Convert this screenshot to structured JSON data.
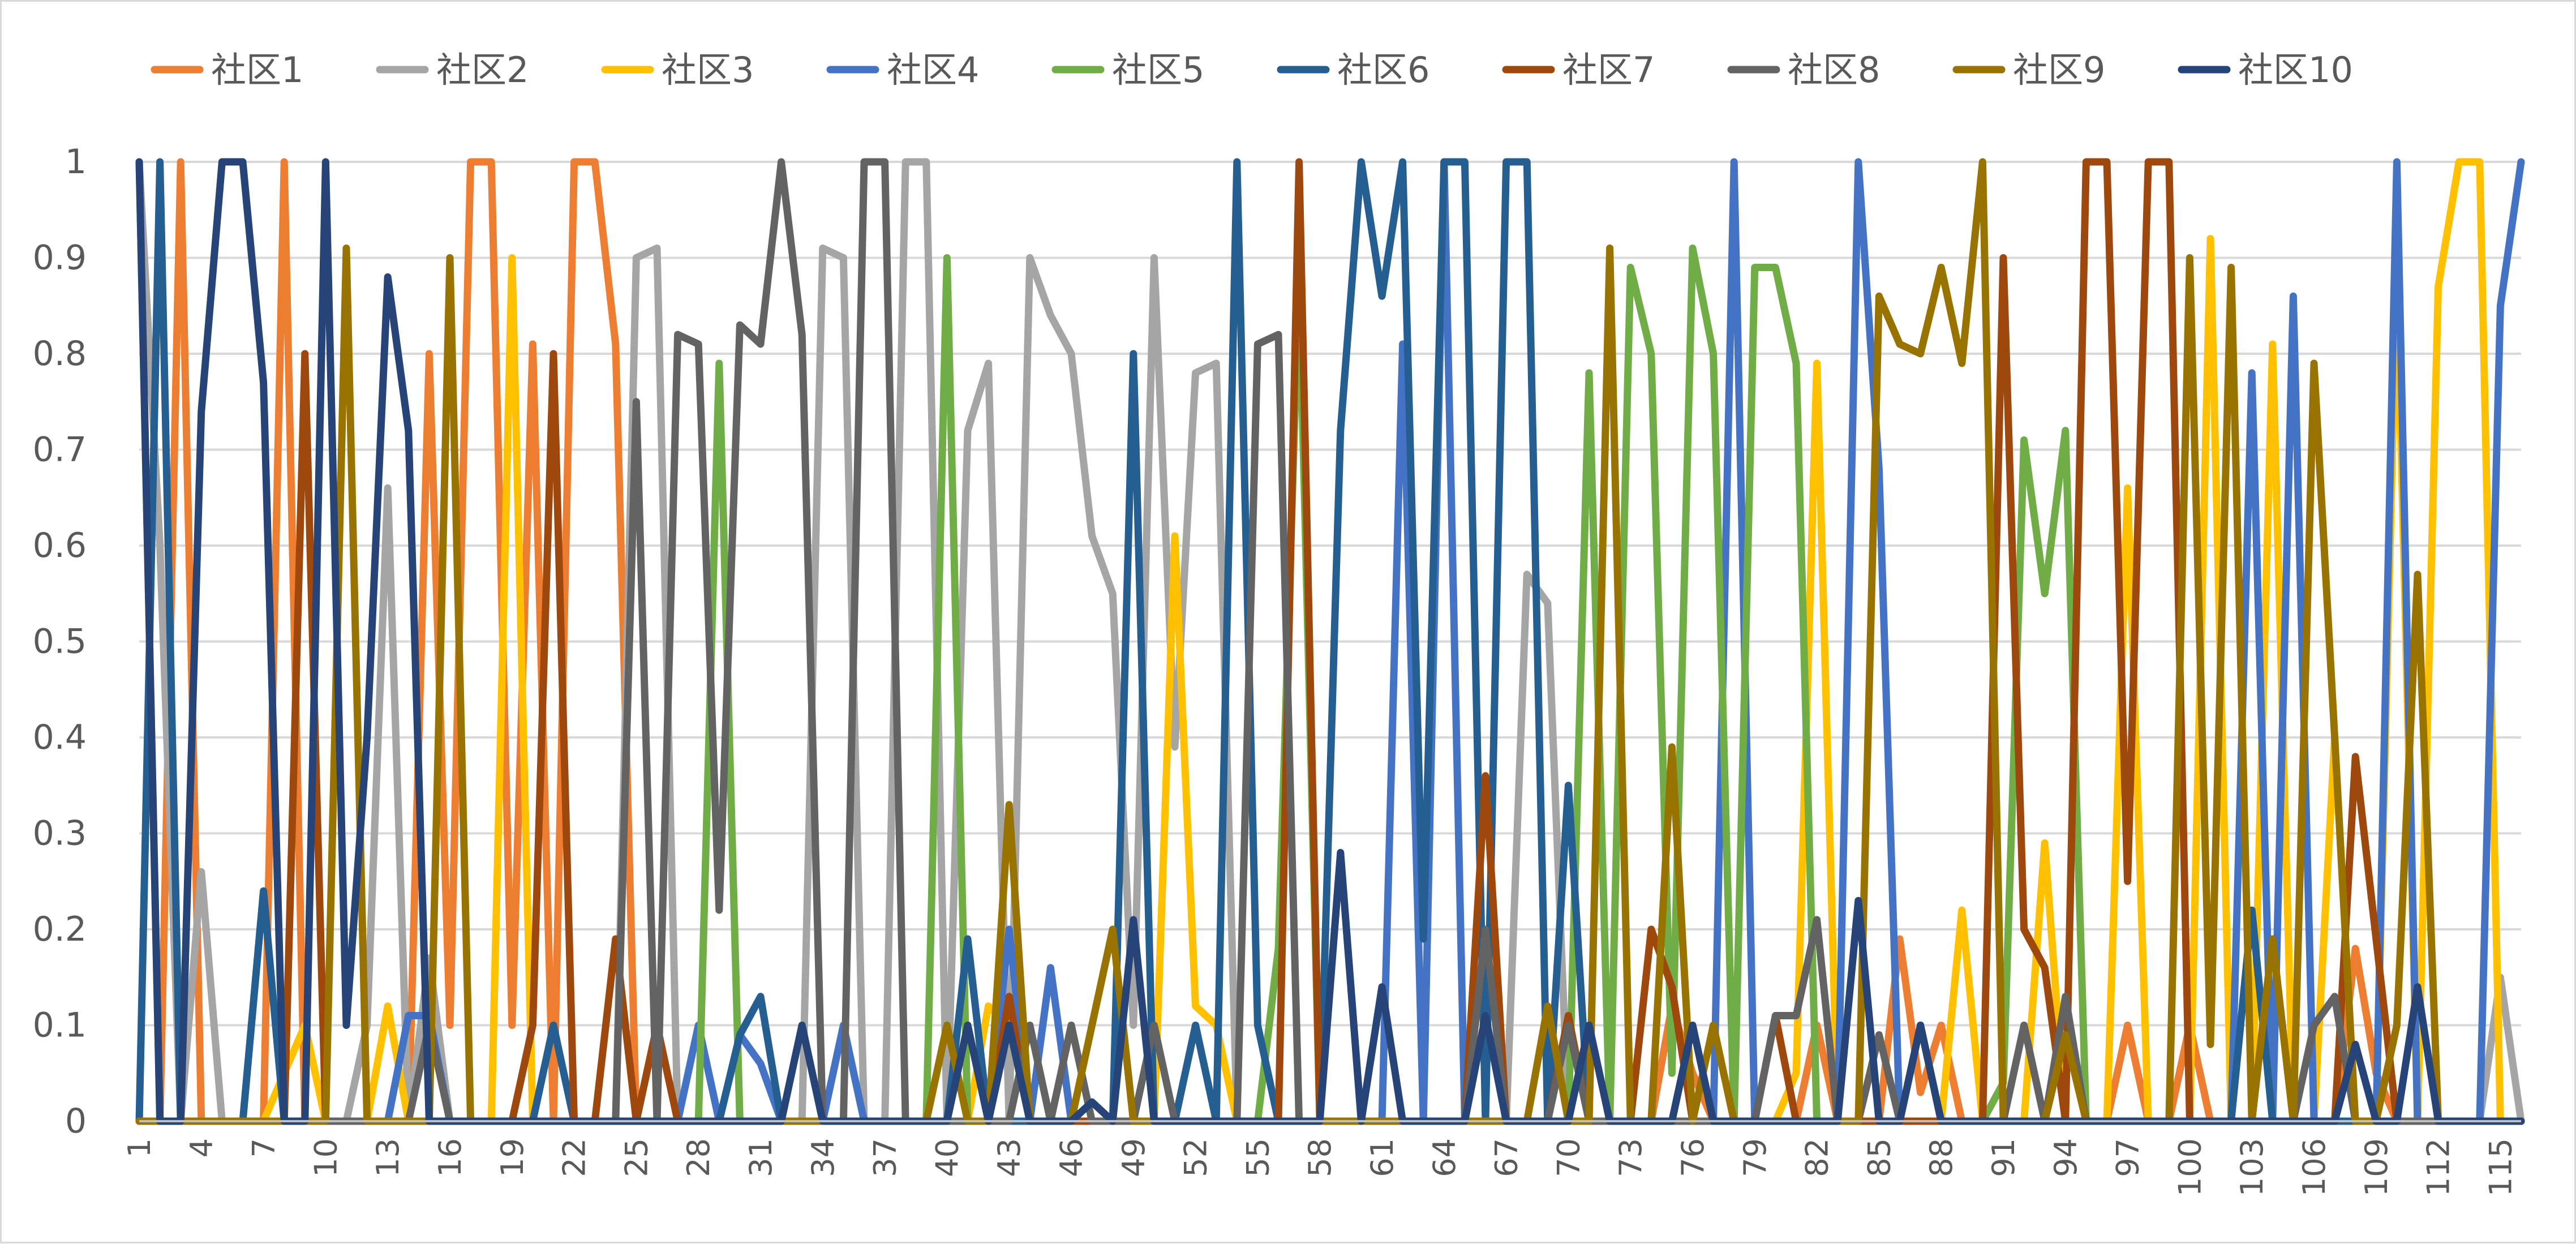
{
  "chart_data": {
    "type": "line",
    "title": "",
    "xlabel": "",
    "ylabel": "",
    "ylim": [
      0,
      1
    ],
    "yticks": [
      "0",
      "0.1",
      "0.2",
      "0.3",
      "0.4",
      "0.5",
      "0.6",
      "0.7",
      "0.8",
      "0.9",
      "1"
    ],
    "x": [
      1,
      2,
      3,
      4,
      5,
      6,
      7,
      8,
      9,
      10,
      11,
      12,
      13,
      14,
      15,
      16,
      17,
      18,
      19,
      20,
      21,
      22,
      23,
      24,
      25,
      26,
      27,
      28,
      29,
      30,
      31,
      32,
      33,
      34,
      35,
      36,
      37,
      38,
      39,
      40,
      41,
      42,
      43,
      44,
      45,
      46,
      47,
      48,
      49,
      50,
      51,
      52,
      53,
      54,
      55,
      56,
      57,
      58,
      59,
      60,
      61,
      62,
      63,
      64,
      65,
      66,
      67,
      68,
      69,
      70,
      71,
      72,
      73,
      74,
      75,
      76,
      77,
      78,
      79,
      80,
      81,
      82,
      83,
      84,
      85,
      86,
      87,
      88,
      89,
      90,
      91,
      92,
      93,
      94,
      95,
      96,
      97,
      98,
      99,
      100,
      101,
      102,
      103,
      104,
      105,
      106,
      107,
      108,
      109,
      110,
      111,
      112,
      113,
      114,
      115,
      116
    ],
    "xtick_labels": [
      "1",
      "4",
      "7",
      "10",
      "13",
      "16",
      "19",
      "22",
      "25",
      "28",
      "31",
      "34",
      "37",
      "40",
      "43",
      "46",
      "49",
      "52",
      "55",
      "58",
      "61",
      "64",
      "67",
      "70",
      "73",
      "76",
      "79",
      "82",
      "85",
      "88",
      "91",
      "94",
      "97",
      "100",
      "103",
      "106",
      "109",
      "112",
      "115"
    ],
    "legend_position": "top",
    "grid": true,
    "series": [
      {
        "name": "社区1",
        "color": "#ED7D31",
        "values": [
          1,
          0,
          1,
          0,
          0,
          0,
          0,
          1,
          0,
          0,
          0,
          0,
          0,
          0,
          0.8,
          0.1,
          1,
          1,
          0.1,
          0.81,
          0,
          1,
          1,
          0.81,
          0,
          0,
          0,
          0,
          0,
          0,
          0,
          0,
          0,
          0,
          0,
          0,
          0,
          0,
          0,
          0,
          0,
          0,
          0,
          0,
          0,
          0,
          0,
          0,
          0,
          0,
          0,
          0,
          0,
          0,
          0,
          0,
          0,
          0,
          0,
          0,
          0,
          0,
          0,
          0,
          0,
          0,
          0,
          0,
          0,
          0,
          0,
          0,
          0,
          0,
          0.12,
          0.05,
          0,
          0,
          0,
          0,
          0,
          0.1,
          0,
          0,
          0,
          0.19,
          0.03,
          0.1,
          0,
          0,
          0,
          0,
          0,
          0,
          0,
          0,
          0.1,
          0,
          0,
          0.1,
          0,
          0,
          0,
          0,
          0,
          0,
          0,
          0.18,
          0.05,
          0,
          0,
          0,
          0,
          0,
          0,
          0
        ]
      },
      {
        "name": "社区2",
        "color": "#A5A5A5",
        "values": [
          1,
          0.6,
          0,
          0.26,
          0,
          0,
          0,
          0,
          0,
          0,
          0,
          0.1,
          0.66,
          0,
          0.17,
          0,
          0,
          0,
          0,
          0,
          0,
          0,
          0,
          0,
          0.9,
          0.91,
          0,
          0,
          0,
          0,
          0,
          0,
          0,
          0.91,
          0.9,
          0,
          0,
          1,
          1,
          0,
          0.72,
          0.79,
          0,
          0.9,
          0.84,
          0.8,
          0.61,
          0.55,
          0.1,
          0.9,
          0.39,
          0.78,
          0.79,
          0,
          0,
          0,
          0,
          0,
          0,
          0,
          0,
          0,
          0,
          0,
          0,
          0,
          0,
          0.57,
          0.54,
          0,
          0,
          0,
          0,
          0,
          0,
          0,
          0,
          0,
          0,
          0,
          0,
          0,
          0,
          0,
          0,
          0,
          0,
          0,
          0,
          0,
          0,
          0,
          0,
          0,
          0,
          0,
          0,
          0,
          0,
          0,
          0,
          0,
          0,
          0,
          0,
          0,
          0,
          0,
          0,
          0,
          0,
          0,
          0,
          0,
          0.15,
          0
        ]
      },
      {
        "name": "社区3",
        "color": "#FFC000",
        "values": [
          0,
          0,
          0,
          0,
          0,
          0,
          0,
          0.05,
          0.1,
          0,
          0,
          0,
          0.12,
          0,
          0,
          0,
          0,
          0,
          0.9,
          0,
          0,
          0,
          0,
          0,
          0,
          0,
          0,
          0,
          0,
          0,
          0,
          0,
          0,
          0,
          0,
          0,
          0,
          0,
          0,
          0,
          0,
          0.12,
          0.1,
          0,
          0,
          0,
          0,
          0,
          0,
          0,
          0.61,
          0.12,
          0.1,
          0,
          0,
          0,
          0,
          0,
          0,
          0,
          0,
          0,
          0,
          0,
          0,
          0,
          0,
          0,
          0,
          0,
          0,
          0,
          0,
          0,
          0,
          0,
          0,
          0,
          0,
          0,
          0.05,
          0.79,
          0,
          0,
          0,
          0,
          0.1,
          0,
          0.22,
          0,
          0,
          0,
          0.29,
          0,
          0,
          0,
          0.66,
          0,
          0,
          0,
          0.92,
          0,
          0,
          0.81,
          0,
          0,
          0.4,
          0,
          0,
          0.89,
          0,
          0.87,
          1,
          1,
          0,
          0
        ]
      },
      {
        "name": "社区4",
        "color": "#4472C4",
        "values": [
          0,
          0,
          0,
          0,
          0,
          0,
          0,
          0,
          0,
          0,
          0,
          0,
          0,
          0.11,
          0.11,
          0,
          0,
          0,
          0,
          0,
          0,
          0,
          0,
          0,
          0,
          0,
          0,
          0.1,
          0,
          0.09,
          0.06,
          0,
          0,
          0,
          0.1,
          0,
          0,
          0,
          0,
          0,
          0,
          0,
          0.2,
          0,
          0.16,
          0,
          0,
          0,
          0,
          0,
          0,
          0,
          0,
          0,
          0,
          0,
          0,
          0,
          0,
          0,
          0,
          0.81,
          0,
          1,
          0,
          0,
          0,
          0,
          0,
          0,
          0,
          0,
          0,
          0,
          0,
          0,
          0,
          1,
          0,
          0,
          0,
          0,
          0,
          1,
          0.68,
          0,
          0,
          0,
          0,
          0,
          0,
          0,
          0,
          0,
          0,
          0,
          0,
          0,
          0,
          0,
          0,
          0,
          0.78,
          0,
          0.86,
          0,
          0,
          0,
          0,
          1,
          0,
          0,
          0,
          0,
          0.85,
          1
        ]
      },
      {
        "name": "社区5",
        "color": "#70AD47",
        "values": [
          0,
          0,
          0,
          0,
          0,
          0,
          0,
          0,
          0,
          0,
          0,
          0,
          0,
          0,
          0,
          0,
          0,
          0,
          0,
          0,
          0,
          0,
          0,
          0,
          0,
          0,
          0,
          0,
          0.79,
          0,
          0,
          0,
          0,
          0,
          0,
          0,
          0,
          0,
          0,
          0.9,
          0,
          0,
          0,
          0,
          0,
          0,
          0,
          0,
          0,
          0,
          0,
          0,
          0,
          0,
          0,
          0.18,
          0.88,
          0,
          0,
          0,
          0,
          0,
          0,
          0,
          0,
          0,
          0,
          0,
          0,
          0,
          0.78,
          0,
          0.89,
          0.8,
          0.05,
          0.91,
          0.8,
          0,
          0.89,
          0.89,
          0.79,
          0,
          0,
          0,
          0,
          0,
          0,
          0,
          0,
          0,
          0.04,
          0.71,
          0.55,
          0.72,
          0,
          0,
          0,
          0,
          0,
          0,
          0,
          0,
          0,
          0,
          0,
          0,
          0,
          0,
          0,
          0,
          0,
          0,
          0,
          0,
          0,
          0
        ]
      },
      {
        "name": "社区6",
        "color": "#255E91",
        "values": [
          0,
          1,
          0,
          0,
          0,
          0,
          0.24,
          0,
          0,
          0,
          0,
          0,
          0,
          0,
          0,
          0,
          0,
          0,
          0,
          0,
          0.1,
          0,
          0,
          0,
          0,
          0,
          0,
          0,
          0,
          0.09,
          0.13,
          0,
          0,
          0,
          0,
          0,
          0,
          0,
          0,
          0,
          0.19,
          0,
          0,
          0,
          0,
          0,
          0,
          0,
          0.8,
          0,
          0,
          0.1,
          0,
          1,
          0.1,
          0,
          0,
          0,
          0.72,
          1,
          0.86,
          1,
          0.19,
          1,
          1,
          0,
          1,
          1,
          0,
          0.35,
          0,
          0,
          0,
          0,
          0,
          0,
          0,
          0,
          0,
          0,
          0,
          0,
          0,
          0,
          0,
          0,
          0,
          0,
          0,
          0,
          0,
          0,
          0,
          0,
          0,
          0,
          0,
          0,
          0,
          0,
          0,
          0,
          0.22,
          0,
          0,
          0,
          0,
          0,
          0,
          0,
          0,
          0,
          0,
          0,
          0,
          0
        ]
      },
      {
        "name": "社区7",
        "color": "#9E480E",
        "values": [
          0,
          0,
          0,
          0,
          0,
          0,
          0,
          0,
          0.8,
          0,
          0,
          0,
          0,
          0,
          0,
          0,
          0,
          0,
          0,
          0.1,
          0.8,
          0,
          0,
          0.19,
          0,
          0.1,
          0,
          0,
          0,
          0,
          0,
          0,
          0,
          0,
          0,
          0,
          0,
          0,
          0,
          0,
          0,
          0,
          0.13,
          0,
          0,
          0,
          0,
          0,
          0,
          0,
          0,
          0,
          0,
          0,
          0,
          0,
          1,
          0,
          0,
          0,
          0,
          0,
          0,
          0,
          0,
          0.36,
          0,
          0,
          0,
          0.11,
          0,
          0,
          0,
          0.2,
          0.14,
          0,
          0,
          0,
          0,
          0.11,
          0,
          0,
          0,
          0,
          0,
          0,
          0,
          0,
          0,
          0,
          0.9,
          0.2,
          0.16,
          0,
          1,
          1,
          0.25,
          1,
          1,
          0,
          0,
          0,
          0,
          0,
          0,
          0,
          0,
          0.38,
          0.19,
          0,
          0,
          0,
          0,
          0,
          0,
          0
        ]
      },
      {
        "name": "社区8",
        "color": "#636363",
        "values": [
          0,
          0,
          0,
          0,
          0,
          0,
          0,
          0,
          0,
          0,
          0,
          0,
          0,
          0,
          0.1,
          0,
          0,
          0,
          0,
          0,
          0,
          0,
          0,
          0,
          0.75,
          0,
          0.82,
          0.81,
          0.22,
          0.83,
          0.81,
          1,
          0.82,
          0,
          0,
          1,
          1,
          0,
          0,
          0,
          0,
          0,
          0,
          0.1,
          0,
          0.1,
          0,
          0,
          0,
          0.1,
          0,
          0,
          0,
          0,
          0.81,
          0.82,
          0,
          0,
          0,
          0,
          0,
          0,
          0,
          0,
          0,
          0.2,
          0,
          0,
          0,
          0.1,
          0,
          0,
          0,
          0,
          0,
          0,
          0,
          0,
          0,
          0.11,
          0.11,
          0.21,
          0,
          0,
          0.09,
          0,
          0.1,
          0,
          0,
          0,
          0,
          0.1,
          0,
          0.13,
          0,
          0,
          0,
          0,
          0,
          0,
          0,
          0,
          0,
          0,
          0,
          0.1,
          0.13,
          0,
          0,
          0,
          0,
          0,
          0,
          0,
          0,
          0
        ]
      },
      {
        "name": "社区9",
        "color": "#997300",
        "values": [
          0,
          0,
          0,
          0,
          0,
          0,
          0,
          0,
          0,
          0,
          0.91,
          0,
          0,
          0,
          0,
          0.9,
          0,
          0,
          0,
          0,
          0,
          0,
          0,
          0,
          0,
          0,
          0,
          0,
          0,
          0,
          0,
          0,
          0,
          0,
          0,
          0,
          0,
          0,
          0,
          0.1,
          0,
          0,
          0.33,
          0,
          0,
          0,
          0.1,
          0.2,
          0,
          0,
          0,
          0,
          0,
          0,
          0,
          0,
          0,
          0,
          0,
          0,
          0,
          0,
          0,
          0,
          0,
          0,
          0,
          0,
          0.12,
          0,
          0,
          0.91,
          0,
          0,
          0.39,
          0,
          0.1,
          0,
          0,
          0,
          0,
          0,
          0,
          0,
          0.86,
          0.81,
          0.8,
          0.89,
          0.79,
          1,
          0,
          0,
          0,
          0.09,
          0,
          0,
          0,
          0,
          0,
          0.9,
          0.08,
          0.89,
          0,
          0.19,
          0,
          0.79,
          0.4,
          0,
          0,
          0.1,
          0.57,
          0,
          0,
          0,
          0,
          0
        ]
      },
      {
        "name": "社区10",
        "color": "#264478",
        "values": [
          1,
          0,
          0,
          0.74,
          1,
          1,
          0.77,
          0,
          0,
          1,
          0.1,
          0.4,
          0.88,
          0.72,
          0,
          0,
          0,
          0,
          0,
          0,
          0,
          0,
          0,
          0,
          0,
          0,
          0,
          0,
          0,
          0,
          0,
          0,
          0.1,
          0,
          0,
          0,
          0,
          0,
          0,
          0,
          0.1,
          0,
          0.1,
          0,
          0,
          0,
          0.02,
          0,
          0.21,
          0,
          0,
          0,
          0,
          0,
          0,
          0,
          0,
          0,
          0.28,
          0,
          0.14,
          0,
          0,
          0,
          0,
          0.11,
          0,
          0,
          0,
          0,
          0.1,
          0,
          0,
          0,
          0,
          0.1,
          0,
          0,
          0,
          0,
          0,
          0,
          0,
          0.23,
          0,
          0,
          0.1,
          0,
          0,
          0,
          0,
          0,
          0,
          0,
          0,
          0,
          0,
          0,
          0,
          0,
          0,
          0,
          0,
          0,
          0,
          0,
          0,
          0.08,
          0,
          0,
          0.14,
          0,
          0,
          0,
          0,
          0
        ]
      }
    ]
  }
}
